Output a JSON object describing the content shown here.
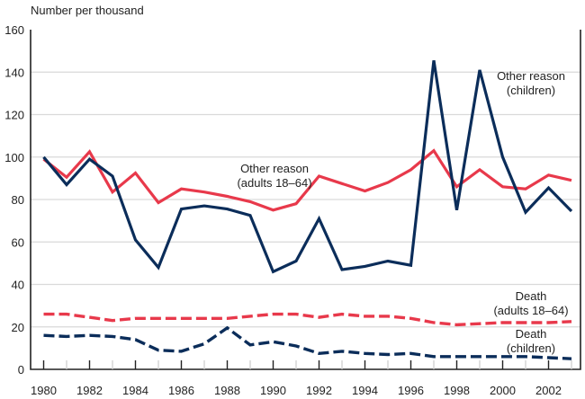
{
  "chart_data": {
    "type": "line",
    "title": "",
    "ylabel": "Number per thousand",
    "xlabel": "",
    "ylim": [
      0,
      160
    ],
    "xlim": [
      1980,
      2003
    ],
    "yticks": [
      0,
      20,
      40,
      60,
      80,
      100,
      120,
      140,
      160
    ],
    "xtick_labels": [
      "1980",
      "1982",
      "1984",
      "1986",
      "1988",
      "1990",
      "1992",
      "1994",
      "1996",
      "1998",
      "2000",
      "2002"
    ],
    "grid": true,
    "legend": "none (direct labels)",
    "x": [
      1980,
      1981,
      1982,
      1983,
      1984,
      1985,
      1986,
      1987,
      1988,
      1989,
      1990,
      1991,
      1992,
      1993,
      1994,
      1995,
      1996,
      1997,
      1998,
      1999,
      2000,
      2001,
      2002,
      2003
    ],
    "series": [
      {
        "name": "Other reason (adults 18–64)",
        "label_lines": [
          "Other reason",
          "(adults 18–64)"
        ],
        "color": "#e8394b",
        "style": "solid",
        "values": [
          99,
          90.5,
          102.5,
          83.5,
          92.5,
          78.5,
          85,
          83.5,
          81.5,
          79,
          75,
          78,
          91,
          87.5,
          84,
          88,
          94,
          103,
          86,
          94,
          86,
          85,
          91.5,
          89
        ]
      },
      {
        "name": "Other reason (children)",
        "label_lines": [
          "Other reason",
          "(children)"
        ],
        "color": "#0b2d5a",
        "style": "solid",
        "values": [
          100,
          87,
          99,
          91,
          61,
          48,
          75.5,
          77,
          75.5,
          72.5,
          46,
          51,
          71,
          47,
          48.5,
          51,
          49,
          145.5,
          75,
          141,
          100,
          74,
          85.5,
          74.5
        ]
      },
      {
        "name": "Death (adults 18–64)",
        "label_lines": [
          "Death",
          "(adults 18–64)"
        ],
        "color": "#e8394b",
        "style": "dashed",
        "values": [
          26,
          26,
          24.5,
          23,
          24,
          24,
          24,
          24,
          24,
          25,
          26,
          26,
          24.5,
          26,
          25,
          25,
          24,
          22,
          21,
          21.5,
          22,
          22,
          22,
          22.5
        ]
      },
      {
        "name": "Death (children)",
        "label_lines": [
          "Death",
          "(children)"
        ],
        "color": "#0b2d5a",
        "style": "dashed",
        "values": [
          16,
          15.5,
          16,
          15.5,
          14,
          9,
          8.5,
          12,
          19.5,
          11.5,
          13,
          11,
          7.5,
          8.5,
          7.5,
          7,
          7.5,
          6,
          6,
          6,
          6,
          6,
          5.5,
          5
        ]
      }
    ]
  }
}
